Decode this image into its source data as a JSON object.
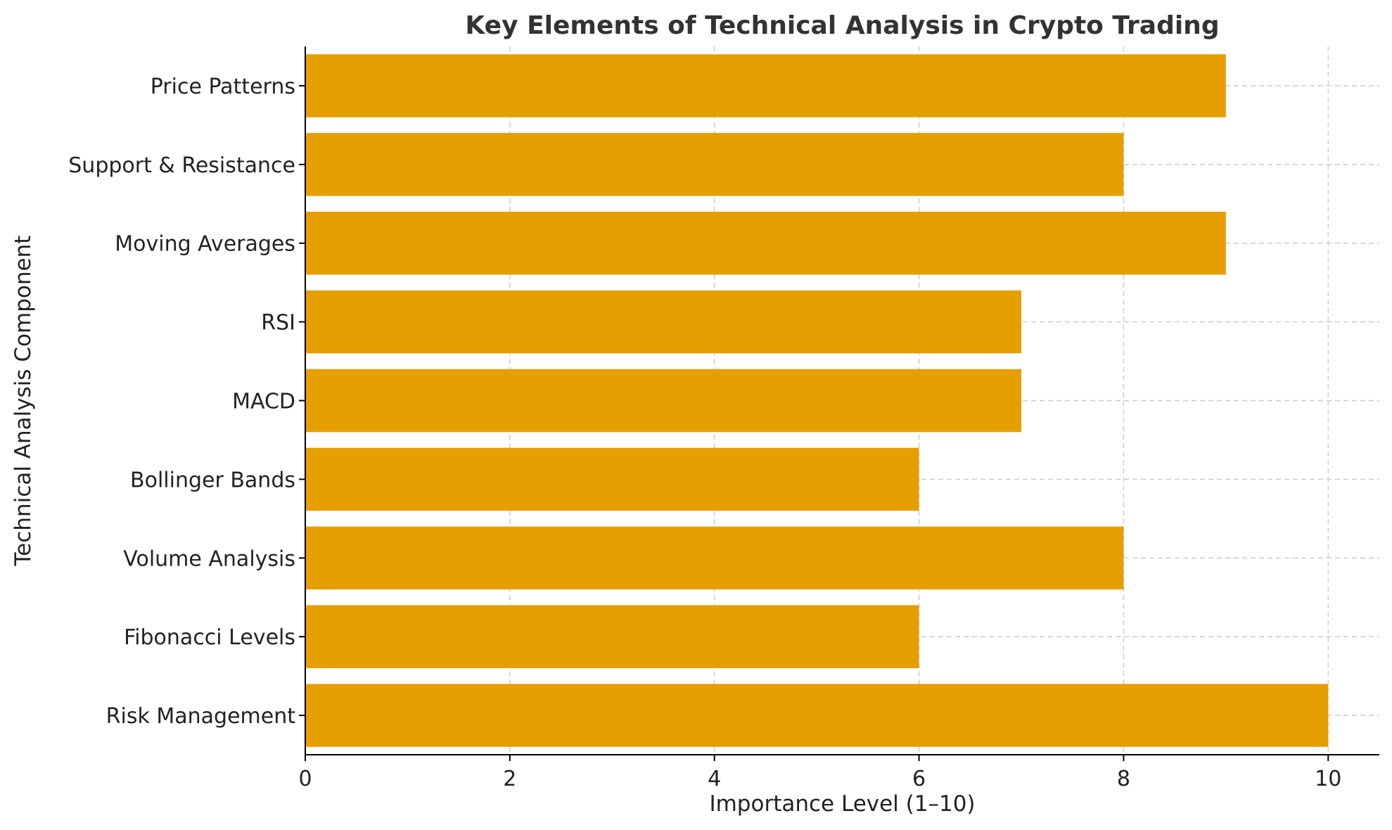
{
  "chart_data": {
    "type": "bar",
    "orientation": "horizontal",
    "title": "Key Elements of Technical Analysis in Crypto Trading",
    "xlabel": "Importance Level (1–10)",
    "ylabel": "Technical Analysis Component",
    "categories": [
      "Risk Management",
      "Fibonacci Levels",
      "Volume Analysis",
      "Bollinger Bands",
      "MACD",
      "RSI",
      "Moving Averages",
      "Support & Resistance",
      "Price Patterns"
    ],
    "values": [
      10,
      6,
      8,
      6,
      7,
      7,
      9,
      8,
      9
    ],
    "xlim": [
      0,
      10.5
    ],
    "xticks": [
      0,
      2,
      4,
      6,
      8,
      10
    ],
    "grid": true,
    "legend": "none",
    "bar_color": "#E69F00"
  }
}
